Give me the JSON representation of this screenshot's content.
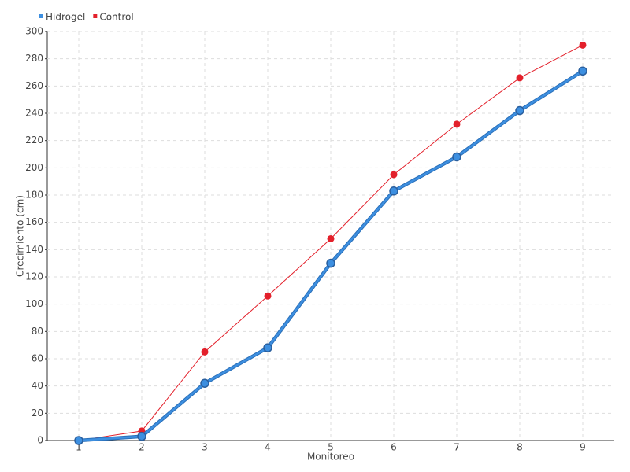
{
  "chart_data": {
    "type": "line",
    "x_label": "Monitoreo",
    "y_label": "Crecimiento (cm)",
    "categories": [
      "1",
      "2",
      "3",
      "4",
      "5",
      "6",
      "7",
      "8",
      "9"
    ],
    "series": [
      {
        "name": "Hidrogel",
        "color": "#3d8fe0",
        "values": [
          0,
          3,
          42,
          68,
          130,
          183,
          208,
          242,
          271
        ]
      },
      {
        "name": "Control",
        "color": "#e3202b",
        "values": [
          0,
          7,
          65,
          106,
          148,
          195,
          232,
          266,
          290
        ]
      }
    ],
    "ylim": [
      0,
      300
    ],
    "yticks": [
      0,
      20,
      40,
      60,
      80,
      100,
      120,
      140,
      160,
      180,
      200,
      220,
      240,
      260,
      280,
      300
    ],
    "grid": true,
    "legend": "top-left"
  }
}
